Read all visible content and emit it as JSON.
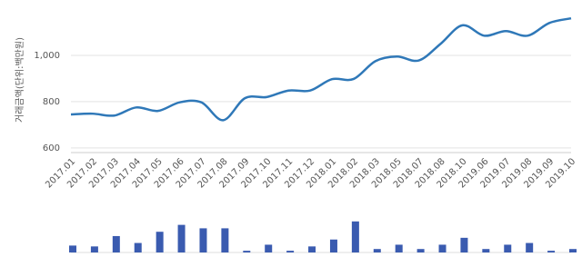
{
  "chart_data": [
    {
      "type": "line",
      "y_label": "거래금액(단위:백만원)",
      "categories": [
        "2017.01",
        "2017.02",
        "2017.03",
        "2017.04",
        "2017.05",
        "2017.06",
        "2017.07",
        "2017.08",
        "2017.09",
        "2017.10",
        "2017.11",
        "2017.12",
        "2018.01",
        "2018.02",
        "2018.03",
        "2018.05",
        "2018.07",
        "2018.08",
        "2018.10",
        "2019.06",
        "2019.07",
        "2019.08",
        "2019.09",
        "2019.10"
      ],
      "series": [
        {
          "color": "#2f78b8",
          "values": [
            745,
            748,
            740,
            775,
            760,
            797,
            797,
            720,
            815,
            820,
            848,
            848,
            897,
            898,
            975,
            995,
            978,
            1050,
            1130,
            1085,
            1105,
            1085,
            1140,
            1160
          ]
        }
      ],
      "ylim": [
        580,
        1200
      ],
      "yticks": [
        600,
        800,
        {
          "value": 1000,
          "label": "1,000"
        }
      ],
      "grid": true
    },
    {
      "type": "bar",
      "color": "#3a5bb0",
      "values": [
        8,
        7,
        19,
        11,
        24,
        32,
        28,
        28,
        2,
        9,
        2,
        7,
        15,
        36,
        4,
        9,
        4,
        9,
        17,
        4,
        9,
        11,
        2,
        4
      ],
      "ylim": [
        0,
        40
      ]
    }
  ]
}
